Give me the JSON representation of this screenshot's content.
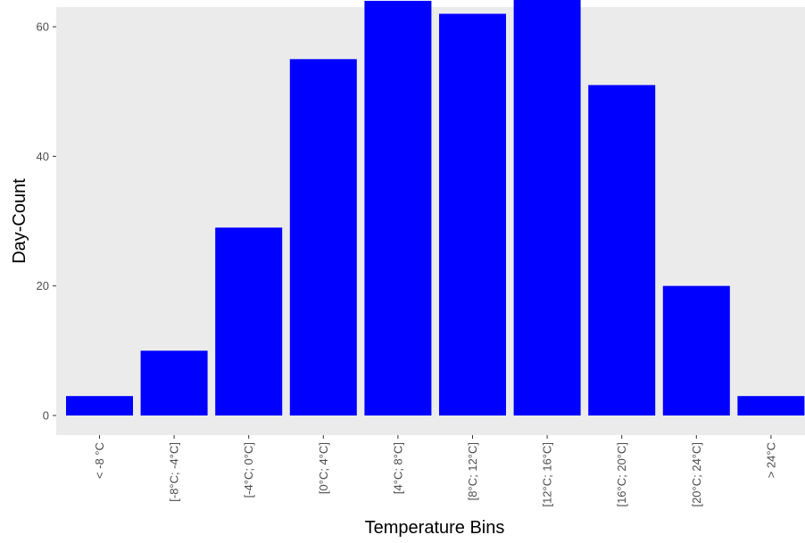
{
  "chart_data": {
    "type": "bar",
    "categories": [
      "< -8 °C",
      "[-8°C; -4°C]",
      "[-4°C; 0°C]",
      "[0°C; 4°C]",
      "[4°C; 8°C]",
      "[8°C; 12°C]",
      "[12°C; 16°C]",
      "[16°C; 20°C]",
      "[20°C; 24°C]",
      "> 24°C"
    ],
    "values": [
      3,
      10,
      29,
      55,
      64,
      62,
      68,
      51,
      20,
      3
    ],
    "title": "",
    "xlabel": "Temperature Bins",
    "ylabel": "Day-Count",
    "ylim": [
      0,
      71.25
    ],
    "yticks": [
      0,
      20,
      40,
      60
    ],
    "grid": false,
    "bar_color": "#0000ff",
    "panel_background": "#ebebeb",
    "tick_color": "#4d4d4d"
  }
}
